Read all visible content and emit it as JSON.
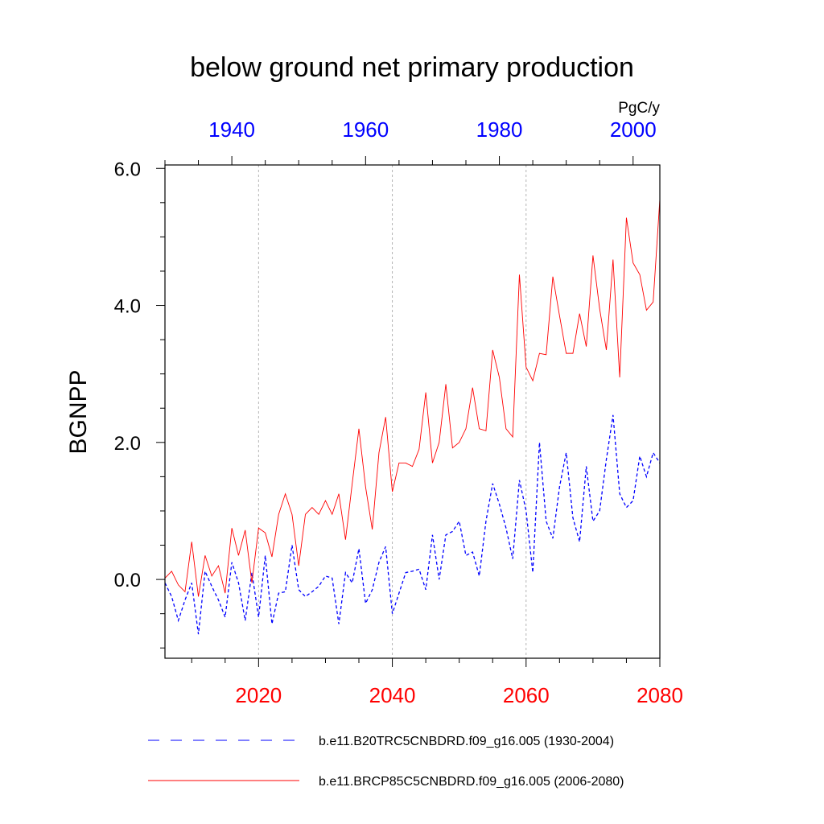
{
  "chart_data": {
    "type": "line",
    "title": "below ground net primary production",
    "units": "PgC/y",
    "ylabel": "BGNPP",
    "ylim": [
      -1.15,
      6.05
    ],
    "ytick_values": [
      0,
      2,
      4,
      6
    ],
    "ytick_labels": [
      "0.0",
      "2.0",
      "4.0",
      "6.0"
    ],
    "ytick_minor_step": 0.5,
    "x_bottom": {
      "range": [
        2006,
        2080
      ],
      "tick_values": [
        2020,
        2040,
        2060,
        2080
      ],
      "tick_labels": [
        "2020",
        "2040",
        "2060",
        "2080"
      ],
      "minor_step": 5,
      "color": "#ff0000"
    },
    "x_top": {
      "range": [
        1930,
        2004
      ],
      "tick_values": [
        1940,
        1960,
        1980,
        2000
      ],
      "tick_labels": [
        "1940",
        "1960",
        "1980",
        "2000"
      ],
      "minor_step": 5,
      "color": "#0000ff"
    },
    "grid_x_values": [
      2020,
      2040,
      2060
    ],
    "series": [
      {
        "name": "b.e11.B20TRC5CNBDRD.f09_g16.005 (1930-2004)",
        "color": "#0000ff",
        "style": "dashed",
        "x_start": 1930,
        "values": [
          -0.05,
          -0.25,
          -0.6,
          -0.3,
          -0.05,
          -0.8,
          0.12,
          -0.1,
          -0.3,
          -0.55,
          0.25,
          -0.05,
          -0.6,
          0.1,
          -0.55,
          0.35,
          -0.65,
          -0.2,
          -0.18,
          0.5,
          -0.15,
          -0.25,
          -0.18,
          -0.1,
          0.05,
          0.02,
          -0.65,
          0.1,
          -0.05,
          0.45,
          -0.35,
          -0.15,
          0.25,
          0.48,
          -0.5,
          -0.2,
          0.1,
          0.12,
          0.15,
          -0.15,
          0.65,
          0.0,
          0.65,
          0.7,
          0.85,
          0.35,
          0.4,
          0.05,
          0.85,
          1.4,
          1.1,
          0.75,
          0.3,
          1.45,
          1.0,
          0.1,
          2.0,
          0.85,
          0.6,
          1.35,
          1.85,
          0.9,
          0.55,
          1.65,
          0.85,
          1.0,
          1.75,
          2.4,
          1.25,
          1.05,
          1.15,
          1.8,
          1.5,
          1.85,
          1.7
        ]
      },
      {
        "name": "b.e11.BRCP85C5CNBDRD.f09_g16.005 (2006-2080)",
        "color": "#ff0000",
        "style": "solid",
        "x_start": 2006,
        "values": [
          0.02,
          0.12,
          -0.08,
          -0.18,
          0.55,
          -0.25,
          0.35,
          0.05,
          0.2,
          -0.2,
          0.75,
          0.35,
          0.72,
          -0.05,
          0.75,
          0.68,
          0.33,
          0.95,
          1.25,
          0.95,
          0.2,
          0.95,
          1.05,
          0.95,
          1.15,
          0.95,
          1.25,
          0.58,
          1.4,
          2.2,
          1.35,
          0.73,
          1.85,
          2.37,
          1.28,
          1.7,
          1.7,
          1.65,
          1.9,
          2.73,
          1.7,
          2.0,
          2.85,
          1.92,
          2.0,
          2.2,
          2.8,
          2.2,
          2.17,
          3.35,
          2.95,
          2.2,
          2.08,
          4.45,
          3.1,
          2.9,
          3.3,
          3.28,
          4.42,
          3.85,
          3.3,
          3.3,
          3.88,
          3.4,
          4.73,
          3.95,
          3.35,
          4.67,
          2.95,
          5.28,
          4.62,
          4.45,
          3.93,
          4.05,
          5.55
        ]
      }
    ]
  }
}
